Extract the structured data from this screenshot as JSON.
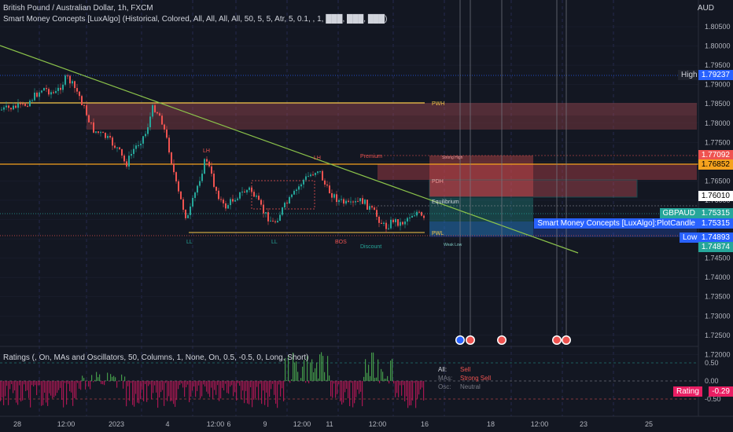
{
  "header": {
    "symbol_line": "British Pound / Australian Dollar, 1h, FXCM",
    "indicator_line": "Smart Money Concepts [LuxAlgo] (Historical, Colored, All, All, All, All, 50, 5, 5, Atr, 5, 0.1, , 1, ███, ███, ███)",
    "currency": "AUD"
  },
  "price_axis": {
    "ticks": [
      "1.80500",
      "1.80000",
      "1.79500",
      "1.79000",
      "1.78500",
      "1.78000",
      "1.77500",
      "1.77000",
      "1.76500",
      "1.76000",
      "1.75500",
      "1.75000",
      "1.74500",
      "1.74000",
      "1.73500",
      "1.73000",
      "1.72500",
      "1.72000"
    ]
  },
  "price_tags": {
    "high_label": "High",
    "high_value": "1.79237",
    "red_value_1": "1.77092",
    "orange_value": "1.76852",
    "white_value": "1.76010",
    "symbol_label": "GBPAUD",
    "last_value": "1.75315",
    "plotcandle_label": "Smart Money Concepts [LuxAlgo]:PlotCandle",
    "plotcandle_value": "1.75315",
    "low_label": "Low",
    "low_value": "1.74893",
    "green_value": "1.74874"
  },
  "chart_labels": {
    "pwh": "PWH",
    "pwl": "PWL",
    "pdh": "PDH",
    "premium": "Premium",
    "equilibrium": "Equilibrium",
    "discount": "Discount",
    "lh1": "LH",
    "lh2": "LH",
    "ll1": "LL",
    "ll2": "LL",
    "bos": "BOS",
    "strong_high": "Strong High",
    "weak_low": "Weak Low"
  },
  "ratings": {
    "title": "Ratings (, On, MAs and Oscillators, 50, Columns, 1, None, On, 0.5, -0.5, 0, Long, Short)",
    "all_label": "All:",
    "all_value": "Sell",
    "mas_label": "MAs:",
    "mas_value": "Strong Sell",
    "osc_label": "Osc:",
    "osc_value": "Neutral",
    "axis_ticks": [
      "0.50",
      "0.00",
      "-0.50"
    ],
    "rating_label": "Rating",
    "rating_value": "-0.29"
  },
  "time_axis": {
    "labels": [
      "28",
      "12:00",
      "2023",
      "4",
      "12:00",
      "6",
      "9",
      "12:00",
      "11",
      "12:00",
      "16",
      "18",
      "12:00",
      "23",
      "25"
    ]
  },
  "colors": {
    "background": "#131722",
    "bull": "#26a69a",
    "bear": "#ef5350",
    "pwh_line": "#f7c948",
    "orange_line": "#f6a21e",
    "trendline": "#8bc34a",
    "rating_tag": "#e91e63",
    "high_tag": "#2962ff"
  },
  "icons": [
    "flag-icon",
    "event-icon",
    "event-icon",
    "event-icon",
    "event-icon",
    "event-icon"
  ]
}
